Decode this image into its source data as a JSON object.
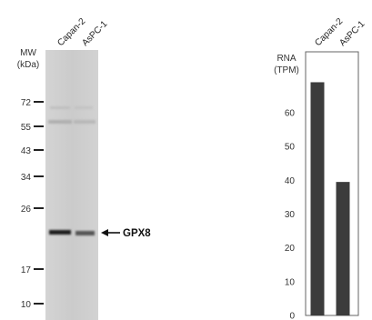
{
  "chart_data": [
    {
      "type": "western-blot",
      "ylabel_line1": "MW",
      "ylabel_line2": "(kDa)",
      "lanes": [
        "Capan-2",
        "AsPC-1"
      ],
      "markers": [
        {
          "label": "72",
          "kda": 72
        },
        {
          "label": "55",
          "kda": 55
        },
        {
          "label": "43",
          "kda": 43
        },
        {
          "label": "34",
          "kda": 34
        },
        {
          "label": "26",
          "kda": 26
        },
        {
          "label": "17",
          "kda": 17
        },
        {
          "label": "10",
          "kda": 10
        }
      ],
      "band_label": "GPX8",
      "band_kda": 22,
      "band_intensity": [
        1.0,
        0.55
      ]
    },
    {
      "type": "bar",
      "ylabel_line1": "RNA",
      "ylabel_line2": "(TPM)",
      "categories": [
        "Capan-2",
        "AsPC-1"
      ],
      "values": [
        69,
        39.5
      ],
      "yticks": [
        0,
        10,
        20,
        30,
        40,
        50,
        60
      ],
      "ylim": [
        0,
        78
      ],
      "bar_color": "#3c3c3c"
    }
  ]
}
